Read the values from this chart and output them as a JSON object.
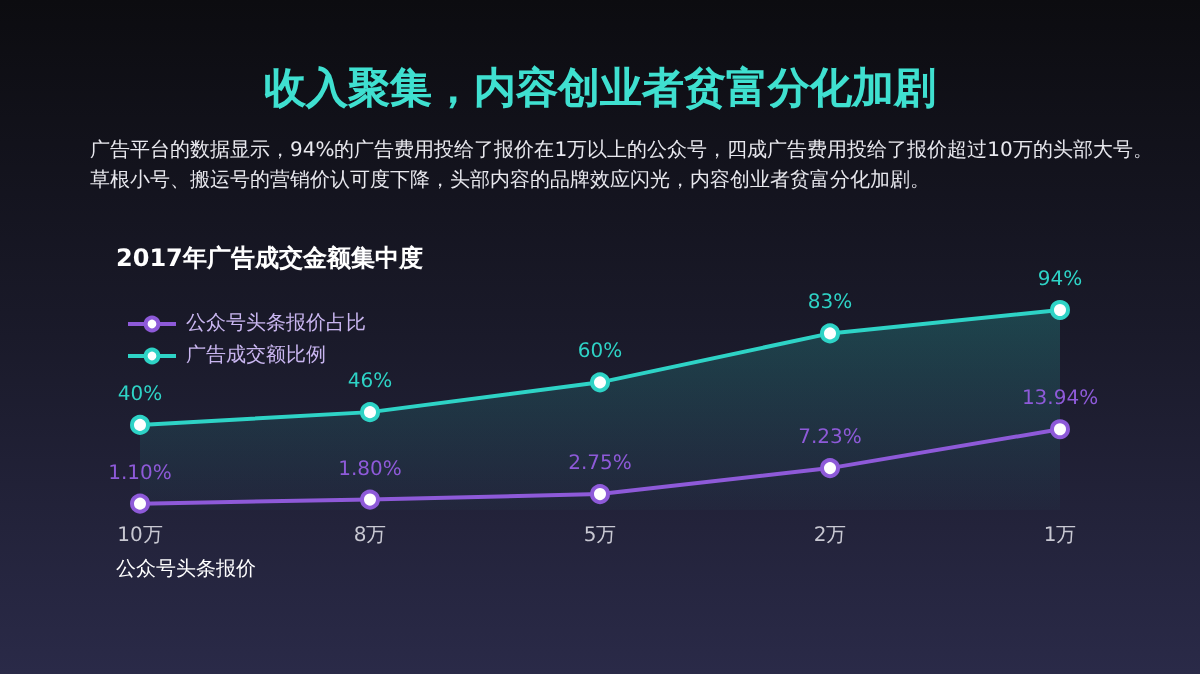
{
  "chart_data": {
    "type": "line",
    "title": "收入聚集，内容创业者贫富分化加剧",
    "subtitle": "广告平台的数据显示，94%的广告费用投给了报价在1万以上的公众号，四成广告费用投给了报价超过10万的头部大号。草根小号、搬运号的营销价认可度下降，头部内容的品牌效应闪光，内容创业者贫富分化加剧。",
    "annotations": [
      "2017年广告成交金额集中度"
    ],
    "xlabel": "公众号头条报价",
    "categories": [
      "10万",
      "8万",
      "5万",
      "2万",
      "1万"
    ],
    "series": [
      {
        "name": "公众号头条报价占比",
        "axis": "y2",
        "color": "#8e5ad9",
        "values": [
          1.1,
          1.8,
          2.75,
          7.23,
          13.94
        ],
        "value_labels": [
          "1.10%",
          "1.80%",
          "2.75%",
          "7.23%",
          "13.94%"
        ]
      },
      {
        "name": "广告成交额比例",
        "type": "area",
        "color": "#2ed3c6",
        "values": [
          40,
          46,
          60,
          83,
          94
        ],
        "value_labels": [
          "40%",
          "46%",
          "60%",
          "83%",
          "94%"
        ]
      }
    ],
    "legend": "top left",
    "marker": "circle"
  }
}
